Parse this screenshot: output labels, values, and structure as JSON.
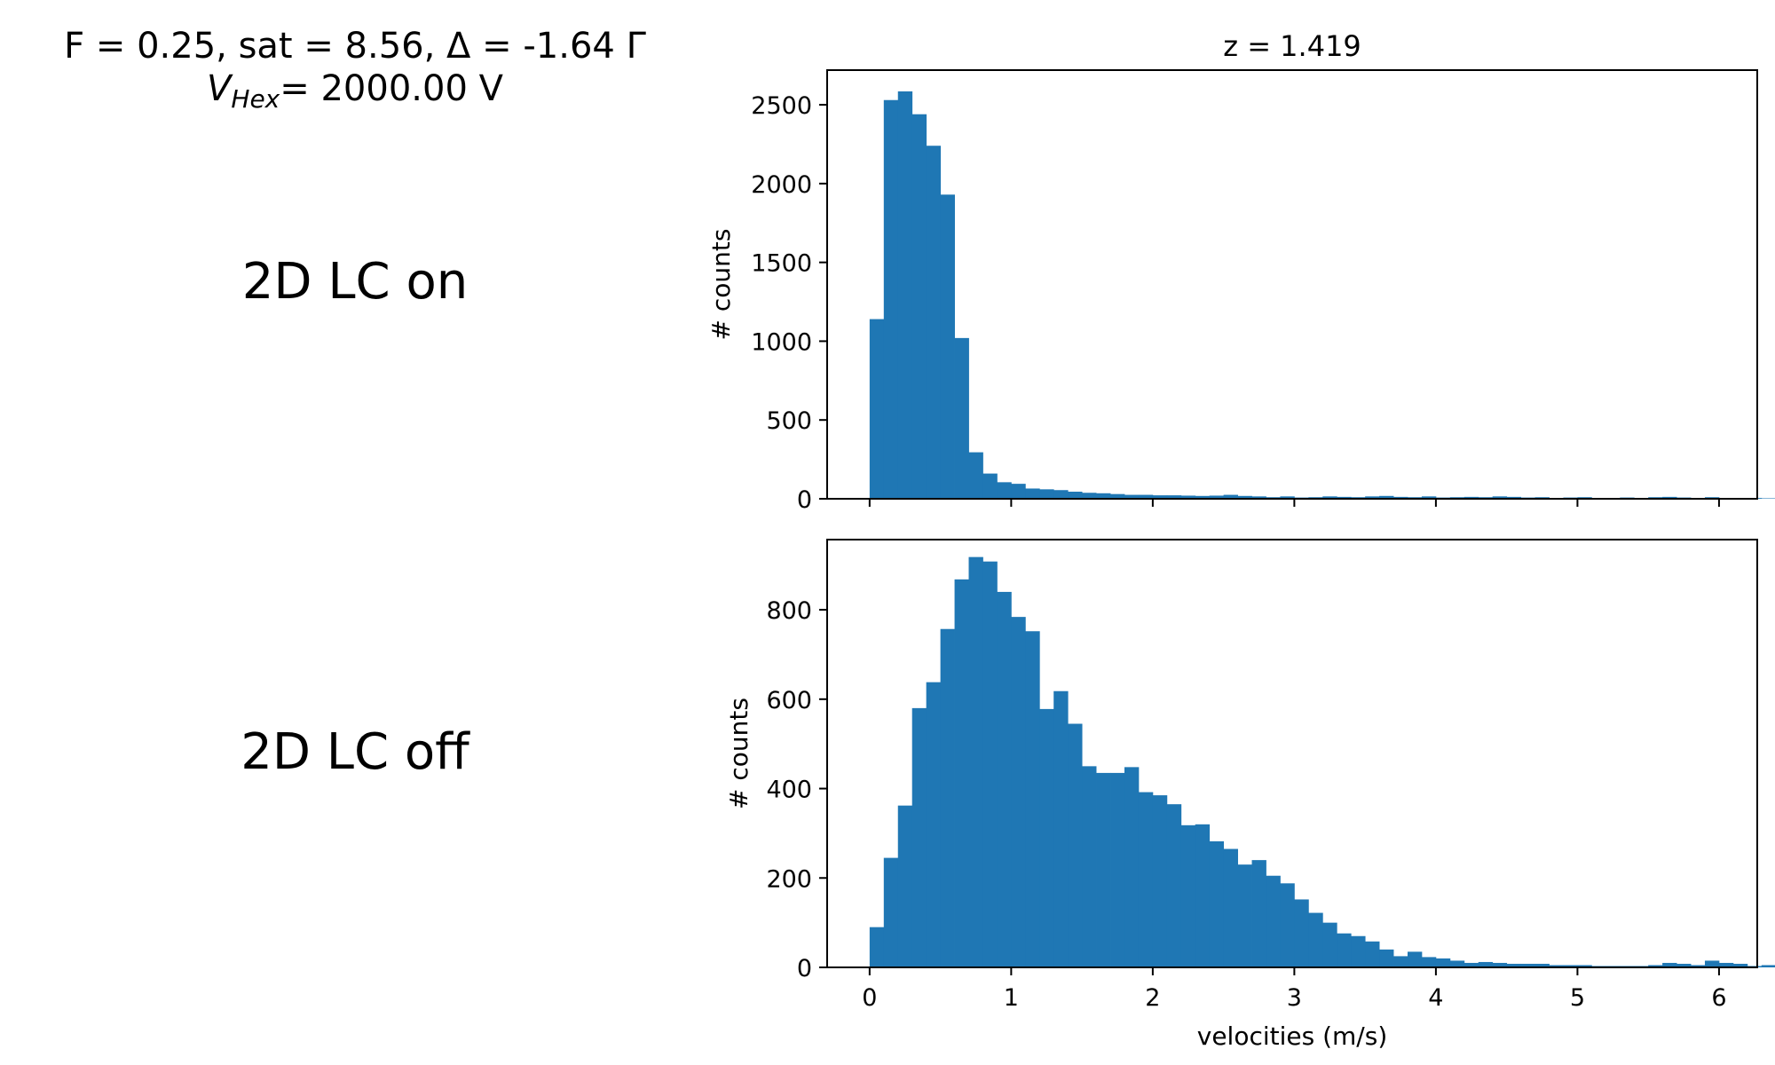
{
  "header": {
    "line1": "F = 0.25, sat = 8.56, Δ = -1.64 Γ",
    "line2_symbol": "V",
    "line2_subscript": "Hex",
    "line2_rest": "= 2000.00 V"
  },
  "labels": {
    "top": "2D LC on",
    "bottom": "2D LC off"
  },
  "chart_data": [
    {
      "type": "bar",
      "subtype": "histogram",
      "title": "z = 1.419",
      "xlabel": "",
      "ylabel": "# counts",
      "color": "#1f77b4",
      "xlim": [
        -0.3,
        6.27
      ],
      "ylim": [
        0,
        2720
      ],
      "xticks": [
        0,
        1,
        2,
        3,
        4,
        5,
        6
      ],
      "yticks": [
        0,
        500,
        1000,
        1500,
        2000,
        2500
      ],
      "show_xtick_labels": false,
      "bin_width": 0.1,
      "bin_start": 0.0,
      "values": [
        1140,
        2530,
        2585,
        2440,
        2240,
        1930,
        1020,
        295,
        160,
        105,
        95,
        65,
        60,
        55,
        45,
        38,
        35,
        30,
        25,
        25,
        22,
        22,
        20,
        18,
        20,
        25,
        18,
        15,
        10,
        15,
        8,
        10,
        15,
        12,
        10,
        15,
        18,
        12,
        10,
        15,
        8,
        10,
        12,
        10,
        15,
        12,
        8,
        10,
        5,
        8,
        10,
        5,
        5,
        8,
        5,
        10,
        12,
        8,
        5,
        10,
        5,
        3,
        5,
        3,
        0
      ]
    },
    {
      "type": "bar",
      "subtype": "histogram",
      "title": "",
      "xlabel": "velocities (m/s)",
      "ylabel": "# counts",
      "color": "#1f77b4",
      "xlim": [
        -0.3,
        6.27
      ],
      "ylim": [
        0,
        957
      ],
      "xticks": [
        0,
        1,
        2,
        3,
        4,
        5,
        6
      ],
      "yticks": [
        0,
        200,
        400,
        600,
        800
      ],
      "show_xtick_labels": true,
      "bin_width": 0.1,
      "bin_start": 0.0,
      "values": [
        90,
        245,
        362,
        580,
        638,
        757,
        868,
        918,
        908,
        840,
        784,
        752,
        578,
        618,
        545,
        450,
        435,
        435,
        448,
        392,
        385,
        365,
        318,
        320,
        282,
        265,
        230,
        240,
        205,
        188,
        152,
        122,
        100,
        76,
        70,
        58,
        40,
        25,
        35,
        23,
        20,
        15,
        10,
        12,
        10,
        8,
        8,
        8,
        5,
        5,
        5,
        3,
        3,
        3,
        3,
        5,
        10,
        8,
        5,
        15,
        10,
        8,
        3,
        5,
        0
      ]
    }
  ]
}
